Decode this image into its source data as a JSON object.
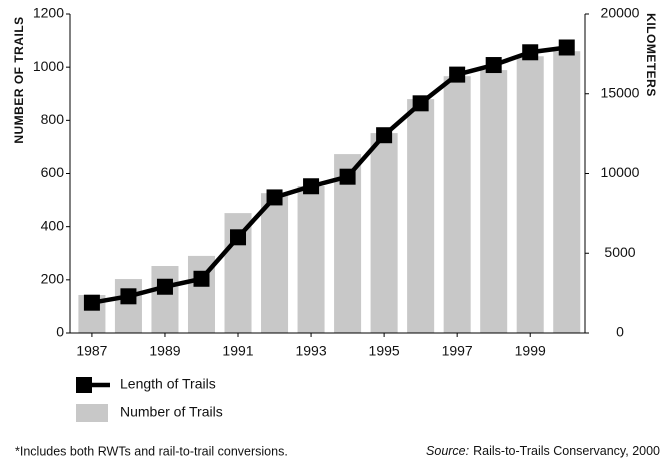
{
  "chart_data": {
    "type": "bar",
    "x": [
      1987,
      1988,
      1989,
      1990,
      1991,
      1992,
      1993,
      1994,
      1995,
      1996,
      1997,
      1998,
      1999,
      2000
    ],
    "xlim": [
      1986.4,
      2000.5
    ],
    "xticks": [
      1987,
      1989,
      1991,
      1993,
      1995,
      1997,
      1999
    ],
    "ylabel": "NUMBER OF TRAILS",
    "y2label": "KILOMETERS",
    "ylim": [
      0,
      1200
    ],
    "yticks": [
      0,
      200,
      400,
      600,
      800,
      1000,
      1200
    ],
    "y2lim": [
      0,
      20000
    ],
    "y2ticks": [
      0,
      5000,
      10000,
      15000,
      20000
    ],
    "series": [
      {
        "name": "Length of Trails",
        "type": "line",
        "axis": "y2",
        "color": "#000000",
        "values": [
          1900,
          2300,
          2900,
          3400,
          6000,
          8500,
          9200,
          9800,
          12400,
          14400,
          16200,
          16800,
          17600,
          17900
        ]
      },
      {
        "name": "Number of Trails",
        "type": "bar",
        "axis": "y",
        "color": "#c8c8c8",
        "values": [
          143,
          203,
          252,
          290,
          451,
          526,
          553,
          673,
          752,
          880,
          966,
          989,
          1041,
          1060
        ]
      }
    ],
    "footnote": "*Includes both RWTs and rail-to-trail conversions.",
    "source_label": "Source:",
    "source": "Rails-to-Trails Conservancy, 2000"
  }
}
